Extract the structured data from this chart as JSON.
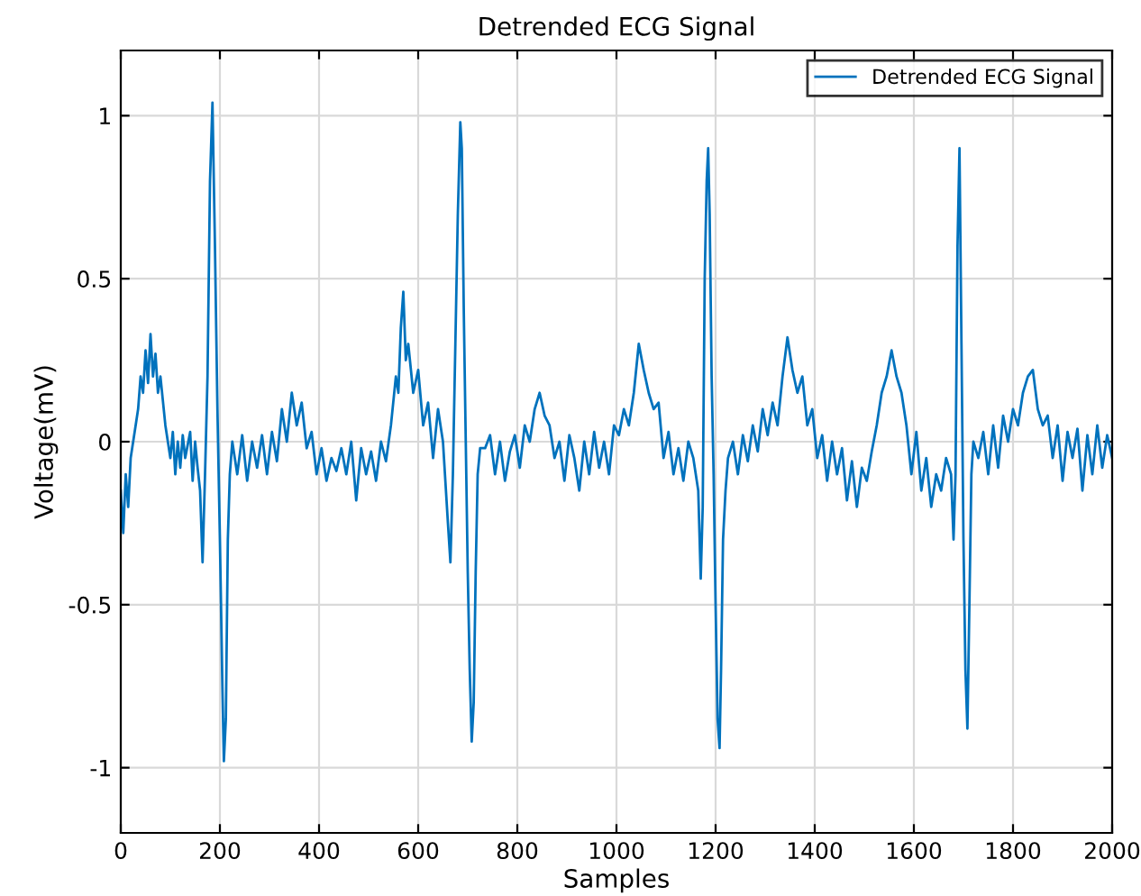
{
  "chart_data": {
    "type": "line",
    "title": "Detrended ECG Signal",
    "xlabel": "Samples",
    "ylabel": "Voltage(mV)",
    "xlim": [
      0,
      2000
    ],
    "ylim": [
      -1.2,
      1.2
    ],
    "xticks": [
      0,
      200,
      400,
      600,
      800,
      1000,
      1200,
      1400,
      1600,
      1800,
      2000
    ],
    "yticks": [
      -1,
      -0.5,
      0,
      0.5,
      1
    ],
    "grid": true,
    "legend": "top right",
    "series": [
      {
        "name": "Detrended ECG Signal",
        "color": "#0072bd",
        "x": [
          0,
          5,
          10,
          15,
          20,
          25,
          30,
          35,
          40,
          45,
          50,
          55,
          60,
          65,
          70,
          75,
          80,
          90,
          100,
          105,
          110,
          115,
          120,
          125,
          130,
          140,
          145,
          150,
          155,
          160,
          165,
          170,
          175,
          180,
          185,
          190,
          195,
          200,
          205,
          208,
          212,
          216,
          220,
          225,
          235,
          245,
          255,
          265,
          275,
          285,
          295,
          305,
          315,
          325,
          335,
          345,
          355,
          365,
          375,
          385,
          395,
          405,
          415,
          425,
          435,
          445,
          455,
          465,
          475,
          485,
          495,
          505,
          515,
          525,
          535,
          545,
          555,
          560,
          565,
          570,
          575,
          580,
          590,
          600,
          610,
          620,
          630,
          640,
          650,
          660,
          665,
          670,
          675,
          680,
          685,
          688,
          692,
          696,
          700,
          704,
          708,
          712,
          716,
          720,
          725,
          735,
          745,
          755,
          765,
          775,
          785,
          795,
          805,
          815,
          825,
          835,
          845,
          855,
          865,
          875,
          885,
          895,
          905,
          915,
          925,
          935,
          945,
          955,
          965,
          975,
          985,
          995,
          1005,
          1015,
          1025,
          1035,
          1045,
          1055,
          1065,
          1075,
          1085,
          1095,
          1105,
          1115,
          1125,
          1135,
          1145,
          1155,
          1165,
          1170,
          1174,
          1178,
          1182,
          1185,
          1188,
          1192,
          1196,
          1200,
          1204,
          1208,
          1211,
          1215,
          1220,
          1225,
          1235,
          1245,
          1255,
          1265,
          1275,
          1285,
          1295,
          1305,
          1315,
          1325,
          1335,
          1345,
          1355,
          1365,
          1375,
          1385,
          1395,
          1405,
          1415,
          1425,
          1435,
          1445,
          1455,
          1465,
          1475,
          1485,
          1495,
          1505,
          1515,
          1525,
          1535,
          1545,
          1555,
          1565,
          1575,
          1585,
          1595,
          1605,
          1615,
          1625,
          1635,
          1645,
          1655,
          1665,
          1675,
          1680,
          1684,
          1688,
          1692,
          1696,
          1700,
          1704,
          1708,
          1712,
          1716,
          1720,
          1730,
          1740,
          1750,
          1760,
          1770,
          1780,
          1790,
          1800,
          1810,
          1820,
          1830,
          1840,
          1850,
          1860,
          1870,
          1880,
          1890,
          1900,
          1910,
          1920,
          1930,
          1940,
          1950,
          1960,
          1970,
          1980,
          1990,
          2000
        ],
        "values": [
          -0.15,
          -0.28,
          -0.1,
          -0.2,
          -0.05,
          0.0,
          0.05,
          0.1,
          0.2,
          0.15,
          0.28,
          0.18,
          0.33,
          0.2,
          0.27,
          0.15,
          0.2,
          0.05,
          -0.05,
          0.03,
          -0.1,
          0.0,
          -0.08,
          0.02,
          -0.05,
          0.03,
          -0.12,
          0.0,
          -0.08,
          -0.15,
          -0.37,
          -0.1,
          0.2,
          0.8,
          1.04,
          0.6,
          0.1,
          -0.3,
          -0.75,
          -0.98,
          -0.85,
          -0.3,
          -0.1,
          0.0,
          -0.1,
          0.02,
          -0.12,
          0.0,
          -0.08,
          0.02,
          -0.1,
          0.03,
          -0.06,
          0.1,
          0.0,
          0.15,
          0.05,
          0.12,
          -0.02,
          0.03,
          -0.1,
          -0.02,
          -0.12,
          -0.05,
          -0.09,
          -0.02,
          -0.1,
          0.0,
          -0.18,
          -0.02,
          -0.1,
          -0.03,
          -0.12,
          0.0,
          -0.06,
          0.05,
          0.2,
          0.15,
          0.35,
          0.46,
          0.25,
          0.3,
          0.15,
          0.22,
          0.05,
          0.12,
          -0.05,
          0.1,
          0.0,
          -0.25,
          -0.37,
          -0.1,
          0.3,
          0.7,
          0.98,
          0.9,
          0.4,
          0.0,
          -0.4,
          -0.7,
          -0.92,
          -0.8,
          -0.4,
          -0.1,
          -0.02,
          -0.02,
          0.02,
          -0.1,
          0.0,
          -0.12,
          -0.03,
          0.02,
          -0.08,
          0.05,
          0.0,
          0.1,
          0.15,
          0.08,
          0.05,
          -0.05,
          0.0,
          -0.12,
          0.02,
          -0.05,
          -0.15,
          0.0,
          -0.1,
          0.03,
          -0.08,
          0.0,
          -0.1,
          0.05,
          0.02,
          0.1,
          0.05,
          0.15,
          0.3,
          0.22,
          0.15,
          0.1,
          0.12,
          -0.05,
          0.03,
          -0.1,
          -0.02,
          -0.12,
          0.0,
          -0.05,
          -0.15,
          -0.42,
          -0.2,
          0.5,
          0.8,
          0.9,
          0.7,
          0.2,
          -0.1,
          -0.5,
          -0.85,
          -0.94,
          -0.7,
          -0.3,
          -0.15,
          -0.05,
          0.0,
          -0.1,
          0.02,
          -0.06,
          0.05,
          -0.03,
          0.1,
          0.02,
          0.12,
          0.05,
          0.2,
          0.32,
          0.22,
          0.15,
          0.2,
          0.05,
          0.1,
          -0.05,
          0.02,
          -0.12,
          0.0,
          -0.1,
          -0.02,
          -0.18,
          -0.06,
          -0.2,
          -0.08,
          -0.12,
          -0.03,
          0.05,
          0.15,
          0.2,
          0.28,
          0.2,
          0.15,
          0.05,
          -0.1,
          0.03,
          -0.15,
          -0.05,
          -0.2,
          -0.1,
          -0.15,
          -0.05,
          -0.1,
          -0.3,
          -0.1,
          0.6,
          0.9,
          0.3,
          -0.3,
          -0.7,
          -0.88,
          -0.5,
          -0.1,
          0.0,
          -0.05,
          0.03,
          -0.1,
          0.05,
          -0.08,
          0.08,
          0.0,
          0.1,
          0.05,
          0.15,
          0.2,
          0.22,
          0.1,
          0.05,
          0.08,
          -0.05,
          0.05,
          -0.12,
          0.03,
          -0.05,
          0.04,
          -0.15,
          0.02,
          -0.1,
          0.05,
          -0.08,
          0.02,
          -0.05
        ]
      }
    ]
  }
}
